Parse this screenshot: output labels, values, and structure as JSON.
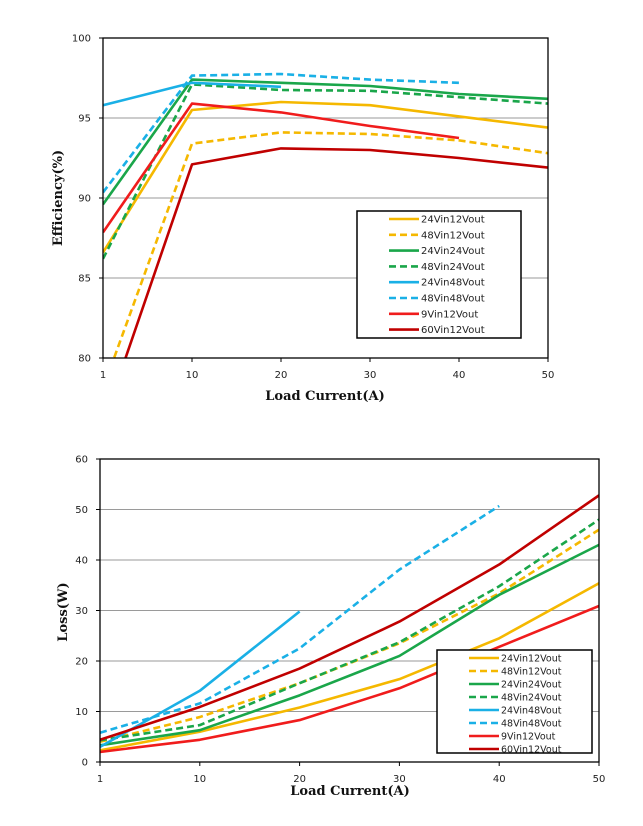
{
  "colors": {
    "yellow": "#f5b800",
    "green": "#1aa64a",
    "blue": "#1ab0e6",
    "red": "#f01c1c",
    "darkred": "#c00000"
  },
  "chart_data": [
    {
      "type": "line",
      "title": "",
      "xlabel": "Load  Current(A)",
      "ylabel": "Efficiency(%)",
      "categories": [
        "1",
        "10",
        "20",
        "30",
        "40",
        "50"
      ],
      "ylim": [
        80,
        100
      ],
      "yticks": [
        "80",
        "85",
        "90",
        "95",
        "100"
      ],
      "grid": true,
      "legend": "center-right",
      "series": [
        {
          "name": "24Vin12Vout",
          "color": "yellow",
          "dash": false,
          "values": [
            86.6,
            95.5,
            96.0,
            95.8,
            95.1,
            94.4
          ]
        },
        {
          "name": "48Vin12Vout",
          "color": "yellow",
          "dash": true,
          "values": [
            78.1,
            93.4,
            94.1,
            94.0,
            93.6,
            92.8
          ]
        },
        {
          "name": "24Vin24Vout",
          "color": "green",
          "dash": false,
          "values": [
            89.6,
            97.4,
            97.2,
            97.0,
            96.5,
            96.2
          ]
        },
        {
          "name": "48Vin24Vout",
          "color": "green",
          "dash": true,
          "values": [
            86.2,
            97.1,
            96.75,
            96.7,
            96.3,
            95.9
          ]
        },
        {
          "name": "24Vin48Vout",
          "color": "blue",
          "dash": false,
          "values": [
            95.8,
            97.2,
            96.95,
            null,
            null,
            null
          ]
        },
        {
          "name": "48Vin48Vout",
          "color": "blue",
          "dash": true,
          "values": [
            90.35,
            97.65,
            97.75,
            97.4,
            97.2,
            null
          ]
        },
        {
          "name": "9Vin12Vout",
          "color": "red",
          "dash": false,
          "values": [
            87.85,
            95.9,
            95.35,
            94.5,
            93.75,
            null
          ]
        },
        {
          "name": "60Vin12Vout",
          "color": "darkred",
          "dash": false,
          "values": [
            75.9,
            92.1,
            93.1,
            93.0,
            92.5,
            91.9
          ]
        }
      ]
    },
    {
      "type": "line",
      "title": "",
      "xlabel": "Load  Current(A)",
      "ylabel": "Loss(W)",
      "categories": [
        "1",
        "10",
        "20",
        "30",
        "40",
        "50"
      ],
      "ylim": [
        0,
        60
      ],
      "yticks": [
        "0",
        "10",
        "20",
        "30",
        "40",
        "50",
        "60"
      ],
      "grid": true,
      "legend": "bottom-right",
      "series": [
        {
          "name": "24Vin12Vout",
          "color": "yellow",
          "dash": false,
          "values": [
            2.3,
            6.0,
            10.8,
            16.4,
            24.5,
            35.4
          ]
        },
        {
          "name": "48Vin12Vout",
          "color": "yellow",
          "dash": true,
          "values": [
            4.0,
            8.9,
            15.6,
            23.5,
            33.4,
            46.0
          ]
        },
        {
          "name": "24Vin24Vout",
          "color": "green",
          "dash": false,
          "values": [
            3.3,
            6.3,
            13.2,
            21.0,
            33.1,
            43.0
          ]
        },
        {
          "name": "48Vin24Vout",
          "color": "green",
          "dash": true,
          "values": [
            4.3,
            7.3,
            15.6,
            23.7,
            34.8,
            48.0
          ]
        },
        {
          "name": "24Vin48Vout",
          "color": "blue",
          "dash": false,
          "values": [
            3.0,
            14.1,
            29.8,
            null,
            null,
            null
          ]
        },
        {
          "name": "48Vin48Vout",
          "color": "blue",
          "dash": true,
          "values": [
            5.8,
            11.6,
            22.5,
            38.1,
            50.7,
            null
          ]
        },
        {
          "name": "9Vin12Vout",
          "color": "red",
          "dash": false,
          "values": [
            2.0,
            4.4,
            8.3,
            14.6,
            22.8,
            30.9
          ]
        },
        {
          "name": "60Vin12Vout",
          "color": "darkred",
          "dash": false,
          "values": [
            4.4,
            10.9,
            18.5,
            27.8,
            39.1,
            52.8
          ]
        }
      ]
    }
  ]
}
